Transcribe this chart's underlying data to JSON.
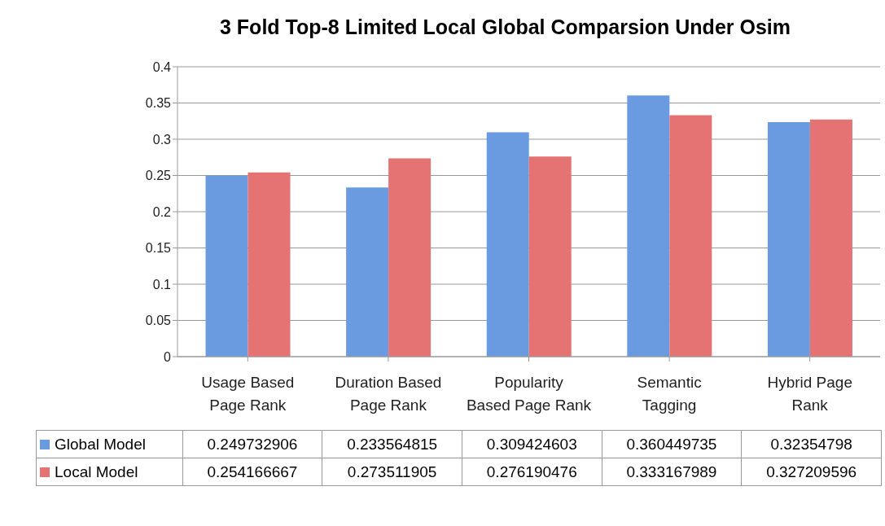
{
  "chart_data": {
    "type": "bar",
    "title": "3 Fold Top-8 Limited Local Global Comparsion Under Osim",
    "categories": [
      "Usage Based Page Rank",
      "Duration Based Page Rank",
      "Popularity Based Page Rank",
      "Semantic Tagging",
      "Hybrid Page Rank"
    ],
    "series": [
      {
        "name": "Global Model",
        "color": "#6a9be0",
        "values": [
          0.249732906,
          0.233564815,
          0.309424603,
          0.360449735,
          0.32354798
        ]
      },
      {
        "name": "Local Model",
        "color": "#e57373",
        "values": [
          0.254166667,
          0.273511905,
          0.276190476,
          0.333167989,
          0.327209596
        ]
      }
    ],
    "ylim": [
      0,
      0.4
    ],
    "yticks": [
      0,
      0.05,
      0.1,
      0.15,
      0.2,
      0.25,
      0.3,
      0.35,
      0.4
    ],
    "grid": "y",
    "legend": "bottom",
    "data_labels": true
  }
}
